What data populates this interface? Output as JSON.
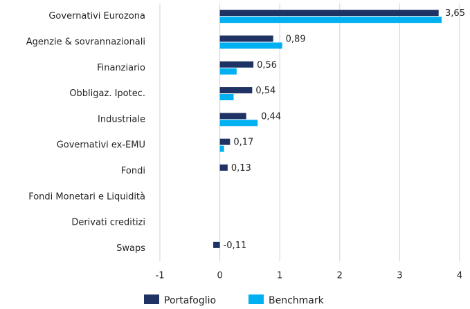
{
  "chart_data": {
    "type": "hbar",
    "categories": [
      "Governativi Eurozona",
      "Agenzie & sovrannazionali",
      "Finanziario",
      "Obbligaz. Ipotec.",
      "Industriale",
      "Governativi ex-EMU",
      "Fondi",
      "Fondi Monetari e Liquidità",
      "Derivati creditizi",
      "Swaps"
    ],
    "series": [
      {
        "name": "Portafoglio",
        "color": "#1f3264",
        "values": [
          3.65,
          0.89,
          0.56,
          0.54,
          0.44,
          0.17,
          0.13,
          null,
          null,
          -0.11
        ],
        "value_labels": [
          "3,65",
          "0,89",
          "0,56",
          "0,54",
          "0,44",
          "0,17",
          "0,13",
          null,
          null,
          "-0,11"
        ]
      },
      {
        "name": "Benchmark",
        "color": "#00b0f0",
        "values": [
          3.7,
          1.04,
          0.28,
          0.23,
          0.63,
          0.07,
          null,
          null,
          null,
          null
        ]
      }
    ],
    "xlim": [
      -1,
      4
    ],
    "xticks": [
      -1,
      0,
      1,
      2,
      3,
      4
    ],
    "grid": true
  }
}
